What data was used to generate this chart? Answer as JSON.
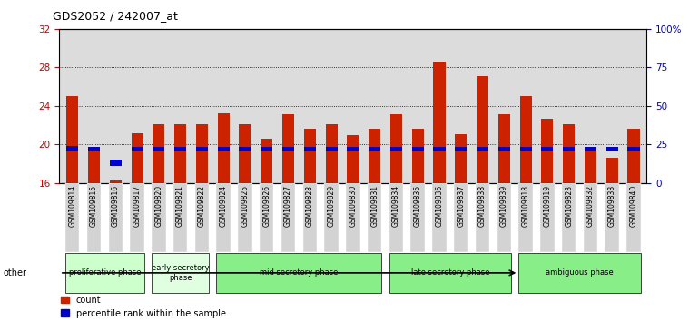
{
  "title": "GDS2052 / 242007_at",
  "samples": [
    "GSM109814",
    "GSM109815",
    "GSM109816",
    "GSM109817",
    "GSM109820",
    "GSM109821",
    "GSM109822",
    "GSM109824",
    "GSM109825",
    "GSM109826",
    "GSM109827",
    "GSM109828",
    "GSM109829",
    "GSM109830",
    "GSM109831",
    "GSM109834",
    "GSM109835",
    "GSM109836",
    "GSM109837",
    "GSM109838",
    "GSM109839",
    "GSM109818",
    "GSM109819",
    "GSM109823",
    "GSM109832",
    "GSM109833",
    "GSM109840"
  ],
  "count_values": [
    25.0,
    19.5,
    16.3,
    21.2,
    22.1,
    22.1,
    22.1,
    23.2,
    22.1,
    20.6,
    23.1,
    21.6,
    22.1,
    21.0,
    21.6,
    23.1,
    21.6,
    28.6,
    21.1,
    27.1,
    23.1,
    25.0,
    22.7,
    22.1,
    19.6,
    18.6,
    21.6
  ],
  "percentile_bottom": [
    19.4,
    19.4,
    17.8,
    19.4,
    19.4,
    19.4,
    19.4,
    19.4,
    19.4,
    19.4,
    19.4,
    19.4,
    19.4,
    19.4,
    19.4,
    19.4,
    19.4,
    19.4,
    19.4,
    19.4,
    19.4,
    19.4,
    19.4,
    19.4,
    19.4,
    19.4,
    19.4
  ],
  "percentile_height": [
    0.45,
    0.35,
    0.6,
    0.35,
    0.35,
    0.35,
    0.35,
    0.35,
    0.35,
    0.35,
    0.35,
    0.35,
    0.35,
    0.35,
    0.35,
    0.35,
    0.35,
    0.35,
    0.35,
    0.35,
    0.35,
    0.35,
    0.35,
    0.35,
    0.35,
    0.35,
    0.35
  ],
  "ylim_left": [
    16,
    32
  ],
  "ylim_right": [
    0,
    100
  ],
  "yticks_left": [
    16,
    20,
    24,
    28,
    32
  ],
  "yticks_right": [
    0,
    25,
    50,
    75,
    100
  ],
  "phase_data": [
    {
      "label": "proliferative phase",
      "start": 0,
      "end": 3,
      "color": "#ccffcc"
    },
    {
      "label": "early secretory\nphase",
      "start": 4,
      "end": 6,
      "color": "#e0ffe0"
    },
    {
      "label": "mid secretory phase",
      "start": 7,
      "end": 14,
      "color": "#88ee88"
    },
    {
      "label": "late secretory phase",
      "start": 15,
      "end": 20,
      "color": "#88ee88"
    },
    {
      "label": "ambiguous phase",
      "start": 21,
      "end": 26,
      "color": "#88ee88"
    }
  ],
  "bar_color_red": "#cc2200",
  "bar_color_blue": "#0000cc",
  "bar_width": 0.55,
  "blue_bar_width": 0.55,
  "background_color": "#ffffff",
  "tick_label_color_left": "#cc0000",
  "tick_label_color_right": "#0000cc",
  "plot_bg": "#dcdcdc",
  "sample_bg": "#d3d3d3",
  "grid_yticks": [
    20,
    24,
    28
  ]
}
